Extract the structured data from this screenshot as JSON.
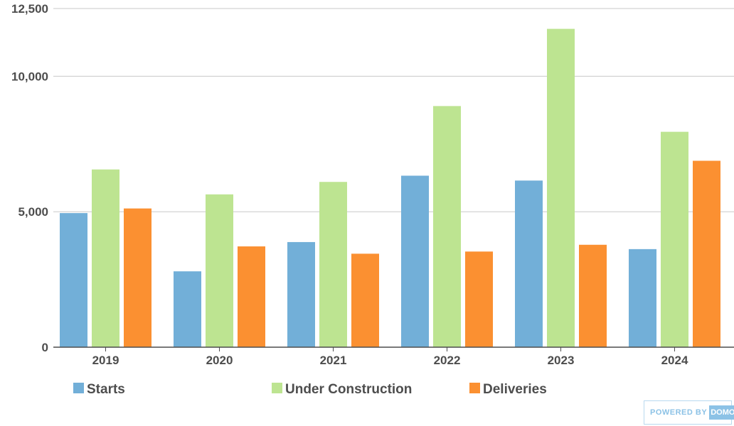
{
  "chart_data": {
    "type": "bar",
    "categories": [
      "2019",
      "2020",
      "2021",
      "2022",
      "2023",
      "2024"
    ],
    "series": [
      {
        "name": "Starts",
        "color": "#72afd8",
        "values": [
          4950,
          2800,
          3880,
          6330,
          6150,
          3620
        ]
      },
      {
        "name": "Under Construction",
        "color": "#bde491",
        "values": [
          6560,
          5640,
          6100,
          8900,
          11750,
          7950
        ]
      },
      {
        "name": "Deliveries",
        "color": "#fb9031",
        "values": [
          5120,
          3720,
          3450,
          3530,
          3780,
          6880
        ]
      }
    ],
    "yticks": [
      "0",
      "5,000",
      "10,000",
      "12,500"
    ],
    "ytick_values": [
      0,
      5000,
      10000,
      12500
    ],
    "ylim": [
      0,
      12500
    ],
    "grid": true,
    "legend_position": "bottom"
  },
  "badge": {
    "text": "POWERED BY",
    "brand": "DOMO"
  }
}
